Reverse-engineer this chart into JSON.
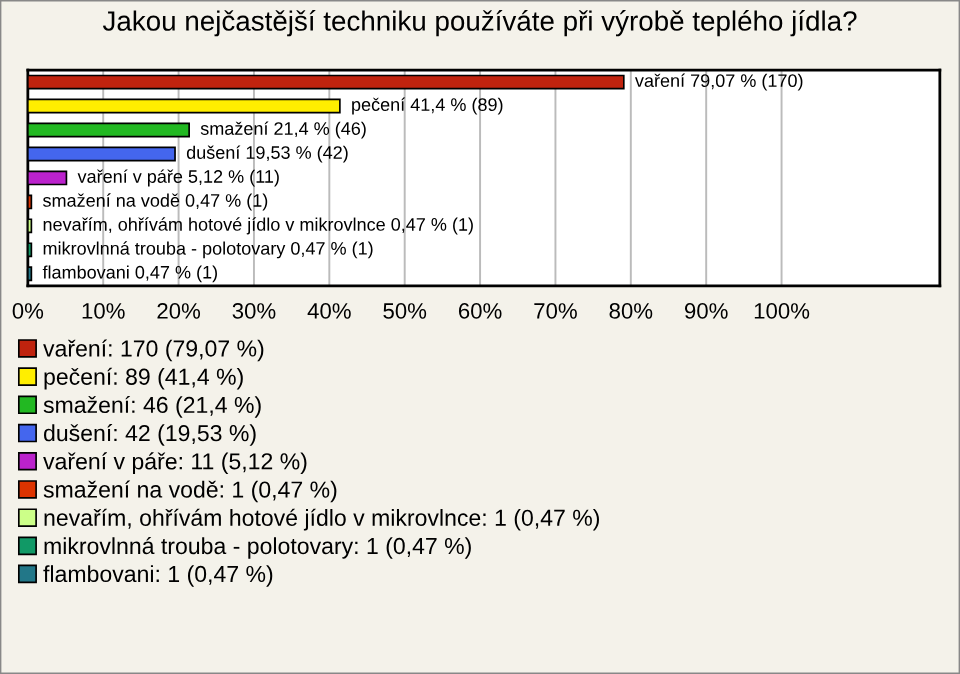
{
  "chart_data": {
    "type": "bar",
    "orientation": "horizontal",
    "title": "Jakou nejčastější techniku používáte při výrobě teplého jídla?",
    "categories": [
      null,
      null,
      null,
      null,
      null,
      null,
      null,
      null,
      null
    ],
    "series": [
      {
        "name": "vaření: 170 (79,07 %)",
        "color": "#c0230e",
        "values": [
          79.07,
          null,
          null,
          null,
          null,
          null,
          null,
          null,
          null
        ],
        "value_labels": [
          "vaření 79,07 % (170)",
          null,
          null,
          null,
          null,
          null,
          null,
          null,
          null
        ]
      },
      {
        "name": "pečení: 89 (41,4 %)",
        "color": "#ffee00",
        "values": [
          null,
          41.4,
          null,
          null,
          null,
          null,
          null,
          null,
          null
        ],
        "value_labels": [
          null,
          "pečení 41,4 % (89)",
          null,
          null,
          null,
          null,
          null,
          null,
          null
        ]
      },
      {
        "name": "smažení: 46 (21,4 %)",
        "color": "#22b822",
        "values": [
          null,
          null,
          21.4,
          null,
          null,
          null,
          null,
          null,
          null
        ],
        "value_labels": [
          null,
          null,
          "smažení 21,4 % (46)",
          null,
          null,
          null,
          null,
          null,
          null
        ]
      },
      {
        "name": "dušení: 42 (19,53 %)",
        "color": "#4466ee",
        "values": [
          null,
          null,
          null,
          19.53,
          null,
          null,
          null,
          null,
          null
        ],
        "value_labels": [
          null,
          null,
          null,
          "dušení 19,53 % (42)",
          null,
          null,
          null,
          null,
          null
        ]
      },
      {
        "name": "vaření v páře: 11 (5,12 %)",
        "color": "#bb22cc",
        "values": [
          null,
          null,
          null,
          null,
          5.12,
          null,
          null,
          null,
          null
        ],
        "value_labels": [
          null,
          null,
          null,
          null,
          "vaření v páře 5,12 % (11)",
          null,
          null,
          null,
          null
        ]
      },
      {
        "name": "smažení na vodě: 1 (0,47 %)",
        "color": "#dd3300",
        "values": [
          null,
          null,
          null,
          null,
          null,
          0.47,
          null,
          null,
          null
        ],
        "value_labels": [
          null,
          null,
          null,
          null,
          null,
          "smažení na vodě 0,47 % (1)",
          null,
          null,
          null
        ]
      },
      {
        "name": "nevařím, ohřívám hotové jídlo v mikrovlnce: 1 (0,47 %)",
        "color": "#ccff88",
        "values": [
          null,
          null,
          null,
          null,
          null,
          null,
          0.47,
          null,
          null
        ],
        "value_labels": [
          null,
          null,
          null,
          null,
          null,
          null,
          "nevařím, ohřívám hotové jídlo v mikrovlnce 0,47 % (1)",
          null,
          null
        ]
      },
      {
        "name": "mikrovlnná trouba - polotovary: 1 (0,47 %)",
        "color": "#119966",
        "values": [
          null,
          null,
          null,
          null,
          null,
          null,
          null,
          0.47,
          null
        ],
        "value_labels": [
          null,
          null,
          null,
          null,
          null,
          null,
          null,
          "mikrovlnná trouba - polotovary 0,47 % (1)",
          null
        ]
      },
      {
        "name": "flambovani: 1 (0,47 %)",
        "color": "#227788",
        "values": [
          null,
          null,
          null,
          null,
          null,
          null,
          null,
          null,
          0.47
        ],
        "value_labels": [
          null,
          null,
          null,
          null,
          null,
          null,
          null,
          null,
          "flambovani 0,47 % (1)"
        ]
      }
    ],
    "xlim": [
      0,
      121
    ],
    "xticks": [
      {
        "value": 0,
        "label": "0%"
      },
      {
        "value": 10,
        "label": "10%"
      },
      {
        "value": 20,
        "label": "20%"
      },
      {
        "value": 30,
        "label": "30%"
      },
      {
        "value": 40,
        "label": "40%"
      },
      {
        "value": 50,
        "label": "50%"
      },
      {
        "value": 60,
        "label": "60%"
      },
      {
        "value": 70,
        "label": "70%"
      },
      {
        "value": 80,
        "label": "80%"
      },
      {
        "value": 90,
        "label": "90%"
      },
      {
        "value": 100,
        "label": "100%"
      }
    ],
    "grid": "x",
    "legend": "bottom"
  }
}
